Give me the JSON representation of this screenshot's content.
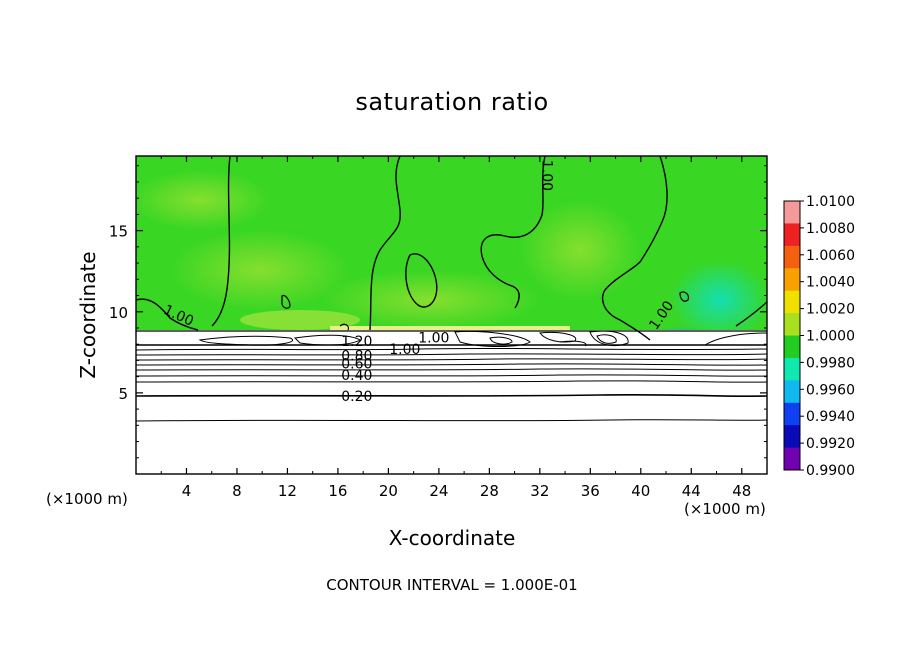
{
  "title": "saturation ratio",
  "footer": "CONTOUR INTERVAL = 1.000E-01",
  "chart_data": {
    "type": "heatmap",
    "title": "saturation ratio",
    "xlabel": "X-coordinate",
    "ylabel": "Z-coordinate",
    "x_unit_label": "(×1000 m)",
    "xlim": [
      0,
      50
    ],
    "ylim": [
      0,
      19.6
    ],
    "x_ticks": [
      4,
      8,
      12,
      16,
      20,
      24,
      28,
      32,
      36,
      40,
      44,
      48
    ],
    "x_tick_labels": [
      "4",
      "8",
      "12",
      "16",
      "20",
      "24",
      "28",
      "32",
      "36",
      "40",
      "44",
      "48"
    ],
    "y_ticks": [
      5,
      10,
      15
    ],
    "y_tick_labels": [
      "5",
      "10",
      "15"
    ],
    "grid": false,
    "colorbar": {
      "placement": "right",
      "levels": [
        "1.0100",
        "1.0080",
        "1.0060",
        "1.0040",
        "1.0020",
        "1.0000",
        "0.9980",
        "0.9960",
        "0.9940",
        "0.9920",
        "0.9900"
      ],
      "colors": [
        "#f49a9a",
        "#ee2222",
        "#f26010",
        "#f7a000",
        "#f0e000",
        "#a8e020",
        "#22cc22",
        "#10e8b0",
        "#10b8f0",
        "#1040f0",
        "#0a0ab8",
        "#7000b0"
      ]
    },
    "contour_labels": [
      {
        "text": "1.00",
        "x": 32.6,
        "z": 18.4
      },
      {
        "text": "1.00",
        "x": 3.4,
        "z": 9.8
      },
      {
        "text": "1.00",
        "x": 41.6,
        "z": 9.8
      },
      {
        "text": "1.00",
        "x": 23.6,
        "z": 8.4
      },
      {
        "text": "1.00",
        "x": 21.3,
        "z": 7.7
      },
      {
        "text": "1.20",
        "x": 17.5,
        "z": 8.2
      },
      {
        "text": "0.80",
        "x": 17.5,
        "z": 7.3
      },
      {
        "text": "0.60",
        "x": 17.5,
        "z": 6.8
      },
      {
        "text": "0.40",
        "x": 17.5,
        "z": 6.1
      },
      {
        "text": "0.20",
        "x": 17.5,
        "z": 4.8
      }
    ],
    "contour_interval": "1.000E-01",
    "cloud_base_z": 9.0
  }
}
